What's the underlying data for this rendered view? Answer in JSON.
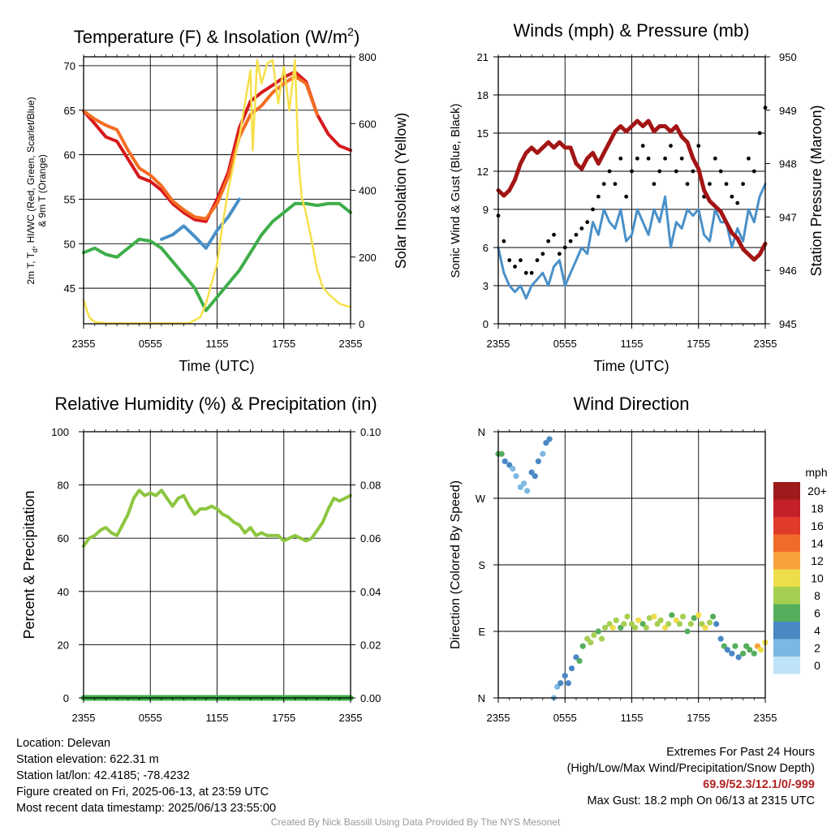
{
  "time_ticks": [
    "2355",
    "0555",
    "1155",
    "1755",
    "2355"
  ],
  "colors": {
    "red": "#d7191c",
    "orange": "#f46d22",
    "green": "#3fae49",
    "blue": "#4a90c8",
    "yellow": "#f6e04a",
    "maroon": "#a31515",
    "black": "#000000",
    "rh_line": "#8dc63f",
    "precip_line": "#3fae49"
  },
  "chart_data": [
    {
      "type": "line",
      "title": "Temperature (F) & Insolation (W/m",
      "title_sup": "2",
      "title_end": ")",
      "xlabel": "Time (UTC)",
      "ylabel_line1": "2m T, T",
      "ylabel_sub": "d",
      "ylabel_rest": ", HI/WC (Red, Green, Scarlet/Blue)",
      "ylabel_line2": "& 9m T (Orange)",
      "ylabel_right": "Solar Insolation (Yellow)",
      "ylim": [
        41,
        71
      ],
      "yticks": [
        45,
        50,
        55,
        60,
        65,
        70
      ],
      "ylim_right": [
        0,
        800
      ],
      "yticks_right": [
        0,
        200,
        400,
        600,
        800
      ],
      "xlim": [
        0,
        24
      ],
      "series": [
        {
          "color": "red",
          "axis": "left",
          "x": [
            0,
            1,
            2,
            3,
            4,
            5,
            6,
            7,
            8,
            9,
            10,
            11,
            12,
            13,
            14,
            15,
            16,
            17,
            18,
            19,
            20,
            21,
            22,
            23,
            24
          ],
          "y": [
            64.9,
            63.5,
            62.0,
            61.5,
            59.5,
            57.5,
            57.0,
            56.0,
            54.5,
            53.5,
            52.7,
            52.5,
            55.0,
            58.0,
            63.0,
            66.0,
            67.0,
            67.8,
            68.7,
            69.3,
            68.2,
            64.5,
            62.3,
            61.0,
            60.5
          ]
        },
        {
          "color": "orange",
          "axis": "left",
          "x": [
            0,
            1,
            2,
            3,
            4,
            5,
            6,
            7,
            8,
            9,
            10,
            11,
            12,
            13,
            14,
            15,
            16,
            17,
            18,
            19,
            20,
            21
          ],
          "y": [
            64.9,
            64.0,
            63.3,
            62.8,
            60.5,
            58.5,
            57.7,
            56.5,
            54.8,
            53.8,
            53.0,
            52.8,
            54.5,
            57.5,
            62.0,
            64.5,
            65.5,
            67.0,
            68.0,
            68.8,
            68.0,
            64.5
          ]
        },
        {
          "color": "blue",
          "axis": "left",
          "x": [
            7,
            8,
            9,
            10,
            11,
            12,
            13,
            14
          ],
          "y": [
            50.5,
            51.0,
            52.0,
            50.8,
            49.5,
            51.5,
            53.0,
            55.0
          ]
        },
        {
          "color": "green",
          "axis": "left",
          "x": [
            0,
            1,
            2,
            3,
            4,
            5,
            6,
            7,
            8,
            9,
            10,
            11,
            12,
            13,
            14,
            15,
            16,
            17,
            18,
            19,
            20,
            21,
            22,
            23,
            24
          ],
          "y": [
            49.0,
            49.5,
            48.8,
            48.5,
            49.5,
            50.5,
            50.3,
            49.5,
            48.0,
            46.5,
            45.0,
            42.5,
            44.0,
            45.5,
            47.0,
            49.0,
            51.0,
            52.5,
            53.5,
            54.5,
            54.5,
            54.3,
            54.5,
            54.5,
            53.5
          ]
        },
        {
          "color": "yellow",
          "axis": "right",
          "x": [
            0,
            0.5,
            1,
            2,
            4,
            6,
            8,
            9,
            9.5,
            10.5,
            11,
            11.5,
            12,
            12.5,
            13,
            13.5,
            14,
            14.5,
            15,
            15.2,
            15.6,
            16,
            16.5,
            17,
            17.5,
            18,
            18.5,
            19,
            19.3,
            19.6,
            20,
            20.5,
            21,
            21.5,
            22,
            23,
            24
          ],
          "y": [
            70,
            20,
            5,
            2,
            2,
            2,
            2,
            2,
            2,
            20,
            60,
            120,
            180,
            300,
            400,
            480,
            560,
            660,
            760,
            520,
            790,
            720,
            780,
            790,
            660,
            770,
            640,
            790,
            500,
            380,
            330,
            250,
            160,
            110,
            90,
            60,
            50
          ]
        }
      ]
    },
    {
      "type": "line",
      "title": "Winds (mph) & Pressure (mb)",
      "xlabel": "Time (UTC)",
      "ylabel": "Sonic Wind & Gust (Blue, Black)",
      "ylabel_right": "Station Pressure (Maroon)",
      "ylim": [
        0,
        21
      ],
      "yticks": [
        0,
        3,
        6,
        9,
        12,
        15,
        18,
        21
      ],
      "ylim_right": [
        945,
        950
      ],
      "yticks_right": [
        945,
        946,
        947,
        948,
        949,
        950
      ],
      "xlim": [
        0,
        24
      ],
      "series": [
        {
          "color": "blue",
          "axis": "left",
          "type": "line",
          "x": [
            0,
            0.5,
            1,
            1.5,
            2,
            2.5,
            3,
            3.5,
            4,
            4.5,
            5,
            5.5,
            6,
            6.5,
            7,
            7.5,
            8,
            8.5,
            9,
            9.5,
            10,
            10.5,
            11,
            11.5,
            12,
            12.5,
            13,
            13.5,
            14,
            14.5,
            15,
            15.5,
            16,
            16.5,
            17,
            17.5,
            18,
            18.5,
            19,
            19.5,
            20,
            20.5,
            21,
            21.5,
            22,
            22.5,
            23,
            23.5,
            24
          ],
          "y": [
            6,
            4,
            3,
            2.5,
            3,
            2,
            3,
            3.5,
            4,
            3,
            4.5,
            5,
            3,
            4,
            5,
            6,
            5.5,
            8,
            7,
            9,
            8,
            7.5,
            9,
            6.5,
            7,
            9,
            8,
            7,
            9,
            8,
            10,
            6,
            8,
            7.5,
            9,
            8.5,
            9,
            7,
            6.5,
            9,
            8,
            8,
            6,
            7.5,
            6.5,
            9,
            8,
            10,
            11
          ]
        },
        {
          "color": "black",
          "axis": "left",
          "type": "scatter",
          "x": [
            0,
            0.5,
            1,
            1.5,
            2,
            2.5,
            3,
            3.5,
            4,
            4.5,
            5,
            5.5,
            6,
            6.5,
            7,
            7.5,
            8,
            8.5,
            9,
            9.5,
            10,
            10.5,
            11,
            11.5,
            12,
            12.5,
            13,
            13.5,
            14,
            14.5,
            15,
            15.5,
            16,
            16.5,
            17,
            17.5,
            18,
            18.5,
            19,
            19.5,
            20,
            20.5,
            21,
            21.5,
            22,
            22.5,
            23,
            23.5,
            24
          ],
          "y": [
            8.5,
            6.5,
            5,
            4.5,
            5,
            4,
            4,
            5,
            5.5,
            6.5,
            7,
            5.5,
            6,
            6.5,
            7,
            7.5,
            8,
            9,
            10,
            11,
            12,
            11,
            13,
            10,
            12,
            13,
            14,
            13,
            11,
            12,
            13,
            14,
            12,
            13,
            11,
            12,
            14,
            10,
            11,
            13,
            12,
            11,
            10,
            9.5,
            11,
            13,
            12,
            15,
            17
          ]
        },
        {
          "color": "maroon",
          "axis": "right",
          "type": "line",
          "x": [
            0,
            0.5,
            1,
            1.5,
            2,
            2.5,
            3,
            3.5,
            4,
            4.5,
            5,
            5.5,
            6,
            6.5,
            7,
            7.5,
            8,
            8.5,
            9,
            9.5,
            10,
            10.5,
            11,
            11.5,
            12,
            12.5,
            13,
            13.5,
            14,
            14.5,
            15,
            15.5,
            16,
            16.5,
            17,
            17.5,
            18,
            18.5,
            19,
            19.5,
            20,
            20.5,
            21,
            21.5,
            22,
            22.5,
            23,
            23.5,
            24
          ],
          "y": [
            947.5,
            947.4,
            947.5,
            947.7,
            948.0,
            948.2,
            948.3,
            948.2,
            948.3,
            948.4,
            948.3,
            948.4,
            948.3,
            948.3,
            948.0,
            947.9,
            948.1,
            948.2,
            948.0,
            948.2,
            948.4,
            948.6,
            948.7,
            948.6,
            948.7,
            948.8,
            948.7,
            948.8,
            948.6,
            948.7,
            948.7,
            948.6,
            948.7,
            948.5,
            948.4,
            948.1,
            947.9,
            947.5,
            947.3,
            947.2,
            947.1,
            946.9,
            946.7,
            946.6,
            946.4,
            946.3,
            946.2,
            946.3,
            946.5
          ]
        }
      ]
    },
    {
      "type": "line",
      "title": "Relative Humidity (%) & Precipitation (in)",
      "ylabel": "Percent & Precipitation",
      "ylim": [
        0,
        100
      ],
      "yticks": [
        0,
        20,
        40,
        60,
        80,
        100
      ],
      "ylim_right": [
        0,
        0.1
      ],
      "yticks_right": [
        "0.00",
        "0.02",
        "0.04",
        "0.06",
        "0.08",
        "0.10"
      ],
      "xlim": [
        0,
        24
      ],
      "series": [
        {
          "color": "rh_line",
          "axis": "left",
          "x": [
            0,
            0.5,
            1,
            1.5,
            2,
            2.5,
            3,
            3.5,
            4,
            4.5,
            5,
            5.5,
            6,
            6.5,
            7,
            7.5,
            8,
            8.5,
            9,
            9.5,
            10,
            10.5,
            11,
            11.5,
            12,
            12.5,
            13,
            13.5,
            14,
            14.5,
            15,
            15.5,
            16,
            16.5,
            17,
            17.5,
            18,
            18.5,
            19,
            19.5,
            20,
            20.5,
            21,
            21.5,
            22,
            22.5,
            23,
            23.5,
            24
          ],
          "y": [
            57,
            60,
            61,
            63,
            64,
            62,
            61,
            65,
            69,
            75,
            78,
            76,
            77,
            76,
            78,
            75,
            72,
            75,
            76,
            72,
            69,
            71,
            71,
            72,
            71,
            69,
            68,
            66,
            65,
            62,
            64,
            61,
            62,
            61,
            61,
            61,
            59,
            60,
            61,
            60,
            59,
            60,
            63,
            66,
            71,
            75,
            74,
            75,
            76
          ]
        },
        {
          "color": "precip_line",
          "axis": "right",
          "x": [
            0,
            24
          ],
          "y": [
            0,
            0
          ]
        }
      ]
    },
    {
      "type": "scatter",
      "title": "Wind Direction",
      "ylabel": "Direction (Colored By Speed)",
      "yticks": [
        "N",
        "E",
        "S",
        "W",
        "N"
      ],
      "ylim": [
        0,
        360
      ],
      "xlim": [
        0,
        24
      ],
      "colorbar_title": "mph",
      "colorbar_labels": [
        "20+",
        "18",
        "16",
        "14",
        "12",
        "10",
        "8",
        "6",
        "4",
        "2",
        "0"
      ],
      "colorbar_colors": [
        "#9e1b1b",
        "#c4202a",
        "#e03a2b",
        "#f06b2a",
        "#f8a23c",
        "#eedd4a",
        "#a6cf52",
        "#55ae5c",
        "#4a88c4",
        "#7db8e2",
        "#bfe3f6"
      ],
      "points": {
        "x": [
          0,
          0.3,
          0.6,
          1.0,
          1.3,
          1.6,
          2.0,
          2.3,
          2.6,
          3.0,
          3.3,
          3.6,
          4.0,
          4.3,
          4.6,
          5.0,
          5.3,
          5.6,
          6.0,
          6.3,
          6.6,
          7.0,
          7.3,
          7.6,
          8.0,
          8.3,
          8.6,
          9.0,
          9.3,
          9.6,
          10.0,
          10.3,
          10.6,
          11.0,
          11.3,
          11.6,
          12.0,
          12.3,
          12.6,
          13.0,
          13.3,
          13.6,
          14.0,
          14.3,
          14.6,
          15.0,
          15.3,
          15.6,
          16.0,
          16.3,
          16.6,
          17.0,
          17.3,
          17.6,
          18.0,
          18.3,
          18.6,
          19.0,
          19.3,
          19.6,
          20.0,
          20.3,
          20.6,
          21.0,
          21.3,
          21.6,
          22.0,
          22.3,
          22.6,
          23.0,
          23.3,
          23.6,
          24.0
        ],
        "dir": [
          330,
          330,
          320,
          315,
          310,
          300,
          285,
          290,
          280,
          305,
          300,
          320,
          330,
          345,
          350,
          0,
          15,
          20,
          30,
          20,
          40,
          55,
          50,
          70,
          80,
          75,
          85,
          90,
          80,
          95,
          100,
          95,
          105,
          95,
          100,
          110,
          100,
          95,
          105,
          100,
          95,
          108,
          110,
          100,
          105,
          95,
          100,
          112,
          105,
          100,
          110,
          90,
          100,
          108,
          112,
          100,
          95,
          102,
          110,
          100,
          80,
          70,
          65,
          60,
          70,
          55,
          60,
          70,
          65,
          60,
          70,
          65,
          75
        ],
        "speed": [
          6,
          6,
          5,
          4,
          3,
          3,
          2,
          3,
          3,
          4,
          4,
          4,
          3,
          4,
          4,
          3,
          3,
          4,
          4,
          4,
          5,
          5,
          6,
          7,
          8,
          9,
          8,
          7,
          8,
          9,
          8,
          10,
          9,
          7,
          8,
          9,
          8,
          9,
          10,
          7,
          9,
          8,
          10,
          8,
          9,
          10,
          8,
          7,
          10,
          9,
          8,
          7,
          8,
          6,
          10,
          9,
          11,
          8,
          7,
          4,
          4,
          6,
          4,
          5,
          6,
          4,
          6,
          7,
          6,
          7,
          12,
          11,
          10
        ]
      }
    }
  ],
  "info": {
    "location": "Location: Delevan",
    "elevation": "Station elevation: 622.31 m",
    "latlon": "Station lat/lon: 42.4185; -78.4232",
    "created": "Figure created on Fri, 2025-06-13, at 23:59 UTC",
    "recent": "Most recent data timestamp: 2025/06/13 23:55:00"
  },
  "extremes": {
    "title": "Extremes For Past 24 Hours",
    "subtitle": "(High/Low/Max Wind/Precipitation/Snow Depth)",
    "values": "69.9/52.3/12.1/0/-999",
    "gust": "Max Gust: 18.2 mph On 06/13 at 2315 UTC"
  },
  "credit": "Created By Nick Bassill Using Data Provided By The NYS Mesonet"
}
